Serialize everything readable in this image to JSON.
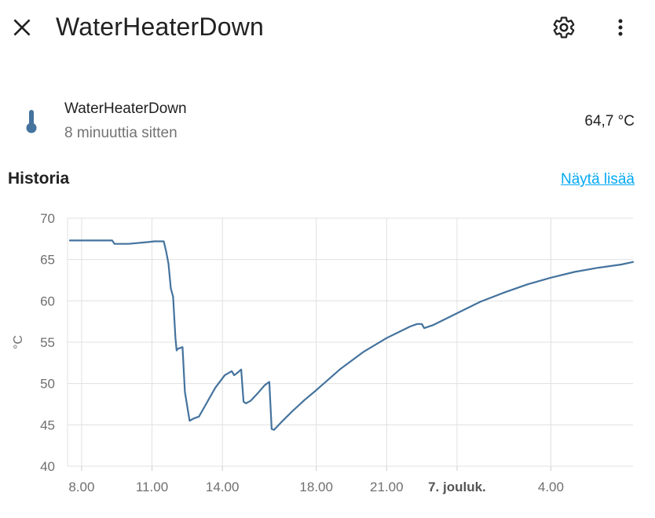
{
  "header": {
    "title": "WaterHeaterDown",
    "close_icon": "close-icon",
    "settings_icon": "gear-icon",
    "more_icon": "more-vert-icon"
  },
  "entity": {
    "name": "WaterHeaterDown",
    "last_changed": "8 minuuttia sitten",
    "state": "64,7 °C",
    "icon": "thermometer-icon",
    "icon_color": "#44739e"
  },
  "history": {
    "title": "Historia",
    "show_more": "Näytä lisää"
  },
  "chart_data": {
    "type": "line",
    "ylabel": "°C",
    "ylim": [
      40,
      70
    ],
    "yticks": [
      "40",
      "45",
      "50",
      "55",
      "60",
      "65",
      "70"
    ],
    "xticks": [
      {
        "t": 8,
        "label": "8.00",
        "bold": false
      },
      {
        "t": 11,
        "label": "11.00",
        "bold": false
      },
      {
        "t": 14,
        "label": "14.00",
        "bold": false
      },
      {
        "t": 18,
        "label": "18.00",
        "bold": false
      },
      {
        "t": 21,
        "label": "21.00",
        "bold": false
      },
      {
        "t": 24,
        "label": "7. jouluk.",
        "bold": true
      },
      {
        "t": 28,
        "label": "4.00",
        "bold": false
      }
    ],
    "x_unit": "hours from 00.00 on 6 December",
    "series_color": "#44739e",
    "grid": true,
    "series": [
      {
        "x": [
          7.5,
          9.3,
          9.4,
          10.0,
          10.8,
          11.1,
          11.5,
          11.6,
          11.7,
          11.8,
          11.9,
          12.0,
          12.05,
          12.1,
          12.3,
          12.4,
          12.6,
          12.8,
          13.0,
          13.3,
          13.7,
          14.1,
          14.4,
          14.5,
          14.6,
          14.8,
          14.9,
          15.0,
          15.2,
          15.5,
          15.8,
          16.0,
          16.1,
          16.2,
          16.5,
          17.0,
          17.5,
          18.0,
          19.0,
          20.0,
          21.0,
          22.0,
          22.3,
          22.5,
          22.6,
          23.0,
          24.0,
          25.0,
          26.0,
          27.0,
          28.0,
          29.0,
          30.0,
          31.0,
          31.5
        ],
        "y": [
          67.3,
          67.3,
          66.9,
          66.9,
          67.1,
          67.2,
          67.2,
          66.0,
          64.5,
          61.5,
          60.5,
          55.5,
          54.0,
          54.2,
          54.4,
          49.0,
          45.5,
          45.8,
          46.0,
          47.5,
          49.5,
          51.0,
          51.5,
          51.0,
          51.2,
          51.7,
          47.8,
          47.6,
          47.9,
          48.8,
          49.8,
          50.2,
          44.5,
          44.4,
          45.3,
          46.7,
          48.0,
          49.2,
          51.7,
          53.8,
          55.5,
          56.9,
          57.2,
          57.2,
          56.7,
          57.1,
          58.5,
          59.9,
          61.0,
          62.0,
          62.8,
          63.5,
          64.0,
          64.4,
          64.7
        ]
      }
    ]
  }
}
